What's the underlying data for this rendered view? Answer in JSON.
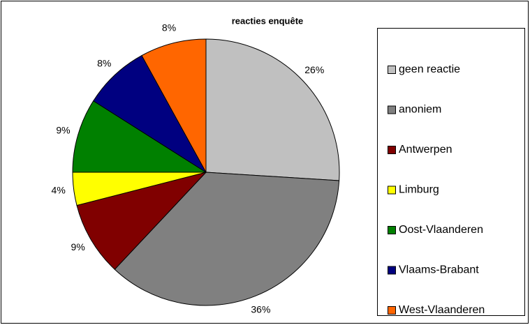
{
  "chart_data": {
    "type": "pie",
    "title": "reacties enquête",
    "categories": [
      "geen reactie",
      "anoniem",
      "Antwerpen",
      "Limburg",
      "Oost-Vlaanderen",
      "Vlaams-Brabant",
      "West-Vlaanderen"
    ],
    "values": [
      26,
      36,
      9,
      4,
      9,
      8,
      8
    ],
    "value_labels": [
      "26%",
      "36%",
      "9%",
      "4%",
      "9%",
      "8%",
      "8%"
    ],
    "colors": [
      "#c0c0c0",
      "#808080",
      "#800000",
      "#ffff00",
      "#008000",
      "#000080",
      "#ff6600"
    ],
    "legend": "right"
  }
}
